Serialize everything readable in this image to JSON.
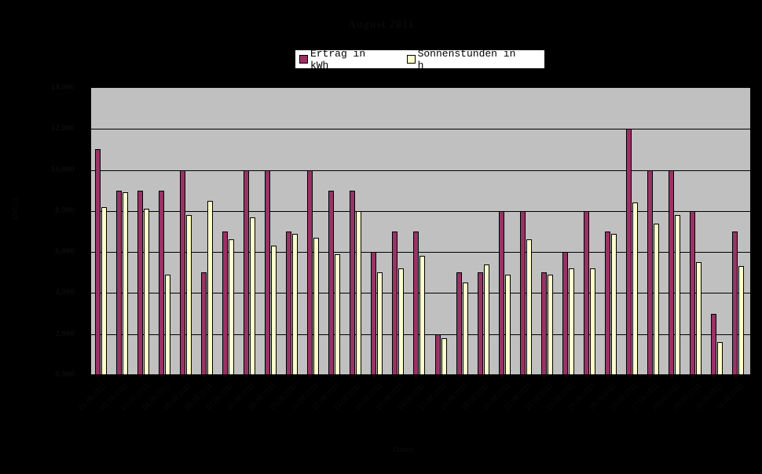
{
  "chart_data": {
    "type": "bar",
    "title": "August 2011",
    "xlabel": "Datum",
    "ylabel": "kWh / h",
    "ylim": [
      0,
      14
    ],
    "yticks": [
      "0,000",
      "2,000",
      "4,000",
      "6,000",
      "8,000",
      "10,000",
      "12,000",
      "14,000"
    ],
    "grid": true,
    "legend_position": "top",
    "categories": [
      "01.08.2011",
      "02.08.2011",
      "03.08.2011",
      "04.08.2011",
      "05.08.2011",
      "06.08.2011",
      "07.08.2011",
      "08.08.2011",
      "09.08.2011",
      "10.08.2011",
      "11.08.2011",
      "12.08.2011",
      "13.08.2011",
      "14.08.2011",
      "15.08.2011",
      "16.08.2011",
      "17.08.2011",
      "18.08.2011",
      "19.08.2011",
      "20.08.2011",
      "21.08.2011",
      "22.08.2011",
      "23.08.2011",
      "24.08.2011",
      "25.08.2011",
      "26.08.2011",
      "27.08.2011",
      "28.08.2011",
      "29.08.2011",
      "30.08.2011",
      "31.08.2011"
    ],
    "series": [
      {
        "name": "Ertrag in kWh",
        "color": "#993366",
        "values": [
          11,
          9,
          9,
          9,
          10,
          5,
          7,
          10,
          10,
          7,
          10,
          9,
          9,
          6,
          7,
          7,
          2,
          5,
          5,
          8,
          8,
          5,
          6,
          8,
          7,
          12,
          10,
          10,
          8,
          3,
          7
        ]
      },
      {
        "name": "Sonnenstunden in h",
        "color": "#FFFFCC",
        "values": [
          8.2,
          8.9,
          8.1,
          4.9,
          7.8,
          8.5,
          6.6,
          7.7,
          6.3,
          6.9,
          6.7,
          5.9,
          8.0,
          5.0,
          5.2,
          5.8,
          1.8,
          4.5,
          5.4,
          4.9,
          6.6,
          4.9,
          5.2,
          5.2,
          6.9,
          8.4,
          7.4,
          7.8,
          5.5,
          1.6,
          5.3
        ]
      }
    ]
  },
  "legend": {
    "items": [
      {
        "label": "Ertrag in kWh",
        "color": "#993366"
      },
      {
        "label": "Sonnenstunden in h",
        "color": "#FFFFCC"
      }
    ]
  },
  "colors": {
    "plot_bg": "#C0C0C0",
    "page_bg": "#000000"
  }
}
